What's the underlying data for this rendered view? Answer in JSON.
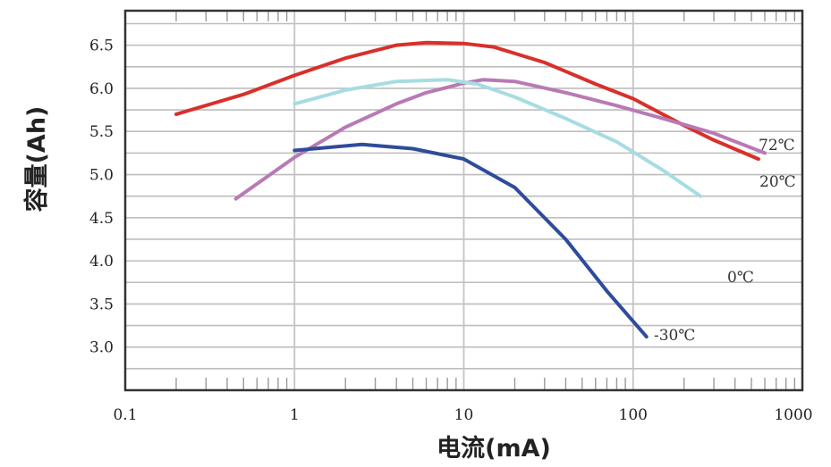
{
  "chart_data": {
    "type": "line",
    "title": "",
    "xlabel": "电流(mA)",
    "ylabel": "容量(Ah)",
    "x_scale": "log",
    "xlim": [
      0.1,
      1000
    ],
    "ylim": [
      2.5,
      6.9
    ],
    "x_ticks": [
      "0.1",
      "1",
      "10",
      "100",
      "1000"
    ],
    "y_ticks": [
      "3.0",
      "3.5",
      "4.0",
      "4.5",
      "5.0",
      "5.5",
      "6.0",
      "6.5"
    ],
    "grid": true,
    "series": [
      {
        "name": "72℃",
        "color": "#d8302a",
        "x": [
          0.2,
          0.5,
          1,
          2,
          4,
          6,
          10,
          15,
          30,
          60,
          100,
          200,
          300,
          550
        ],
        "y": [
          5.7,
          5.93,
          6.15,
          6.35,
          6.5,
          6.53,
          6.52,
          6.48,
          6.3,
          6.05,
          5.88,
          5.57,
          5.4,
          5.18
        ]
      },
      {
        "name": "20℃",
        "color": "#b87ab4",
        "x": [
          0.45,
          1,
          2,
          4,
          6,
          10,
          13,
          20,
          40,
          80,
          150,
          300,
          600
        ],
        "y": [
          4.72,
          5.2,
          5.55,
          5.82,
          5.95,
          6.06,
          6.1,
          6.08,
          5.95,
          5.8,
          5.65,
          5.48,
          5.25
        ]
      },
      {
        "name": "0℃",
        "color": "#a6dce2",
        "x": [
          1,
          2,
          4,
          8,
          12,
          20,
          40,
          80,
          150,
          250
        ],
        "y": [
          5.82,
          5.98,
          6.08,
          6.1,
          6.05,
          5.9,
          5.65,
          5.38,
          5.05,
          4.75
        ]
      },
      {
        "name": "-30℃",
        "color": "#2e4c9a",
        "x": [
          1,
          2.5,
          5,
          10,
          20,
          40,
          70,
          120
        ],
        "y": [
          5.28,
          5.35,
          5.3,
          5.18,
          4.85,
          4.25,
          3.65,
          3.12
        ]
      }
    ],
    "series_label_positions": [
      "right-upper",
      "right",
      "right-middle",
      "end"
    ]
  }
}
